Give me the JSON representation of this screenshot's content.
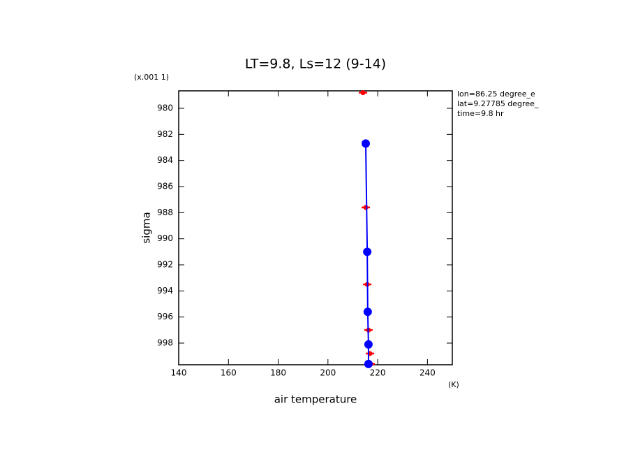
{
  "chart_data": {
    "type": "scatter",
    "title": "LT=9.8, Ls=12 (9-14)",
    "x_label": "air temperature",
    "x_unit": "(K)",
    "y_label": "sigma",
    "y_unit": "(x.001 1)",
    "annotations": [
      "lon=86.25 degree_e",
      "lat=9.27785 degree_",
      "time=9.8 hr"
    ],
    "xlim": [
      140,
      250
    ],
    "xticks": [
      140,
      160,
      180,
      200,
      220,
      240
    ],
    "ylim": [
      999.66,
      978.66
    ],
    "yticks": [
      980,
      982,
      984,
      986,
      988,
      990,
      992,
      994,
      996,
      998
    ],
    "series": [
      {
        "color": "#ff0000",
        "x": [
          214.1,
          215.2,
          215.8,
          216.3,
          216.9,
          217.2
        ],
        "values": [
          978.8,
          987.6,
          993.5,
          997.0,
          998.8,
          999.6
        ]
      },
      {
        "color": "#0000ff",
        "x": [
          215.2,
          215.8,
          216.0,
          216.3,
          216.3
        ],
        "values": [
          982.7,
          991.0,
          995.6,
          998.1,
          999.6
        ]
      }
    ]
  }
}
